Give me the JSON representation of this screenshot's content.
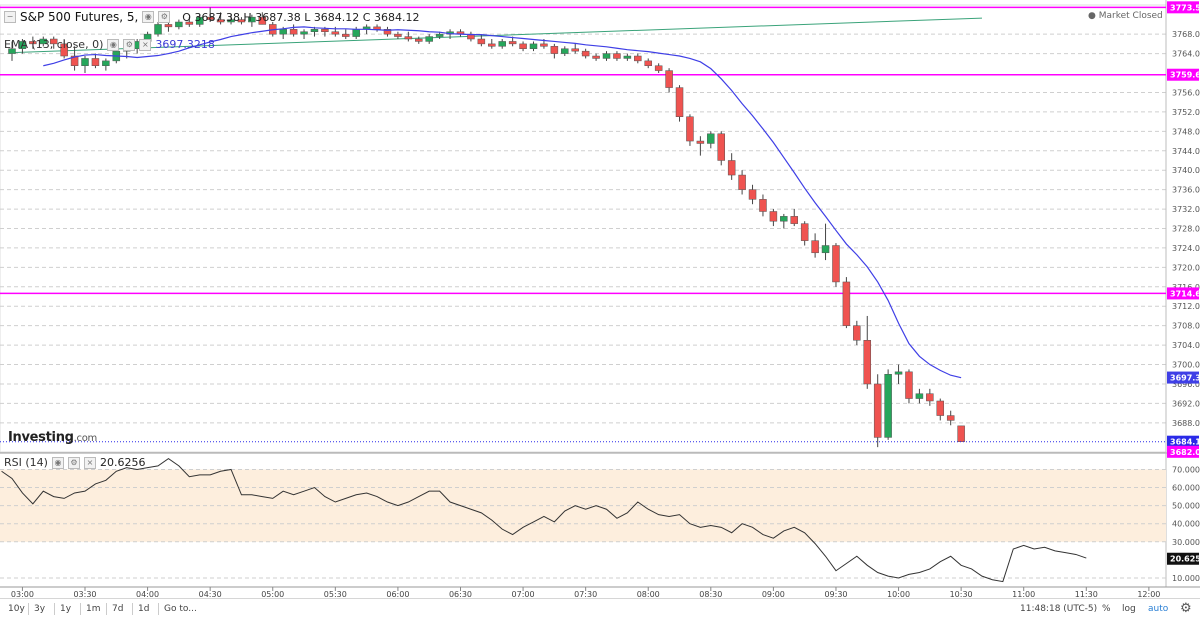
{
  "legend": {
    "title": "S&P 500 Futures, 5,",
    "ohlc": "O 3687.38  H 3687.38  L 3684.12  C 3684.12",
    "ema_label": "EMA (13, close, 0)",
    "ema_value": "3697.3218",
    "rsi_label": "RSI (14)",
    "rsi_value": "20.6256"
  },
  "brand": {
    "name": "Investing",
    "suffix": ".com"
  },
  "status": "Market Closed",
  "timeframes": [
    "10y",
    "3y",
    "1y",
    "1m",
    "7d",
    "1d",
    "Go to..."
  ],
  "clock": "11:48:18 (UTC-5)",
  "bottom_right": {
    "percent": "%",
    "log": "log",
    "auto": "auto"
  },
  "icons": [
    "gear-icon",
    "status-dot-icon"
  ],
  "colors": {
    "up": "#26a65b",
    "down": "#ef5350",
    "ema": "#3f3fe6",
    "trend": "#3aa37a",
    "level": "#ff00ff",
    "last": "#2a2ae8",
    "rsi": "#333333"
  },
  "chart_data": [
    {
      "type": "candlestick",
      "title": "S&P 500 Futures, 5,",
      "x_ticks": [
        "03:00",
        "03:30",
        "04:00",
        "04:30",
        "05:00",
        "05:30",
        "06:00",
        "06:30",
        "07:00",
        "07:30",
        "08:00",
        "08:30",
        "09:00",
        "09:30",
        "10:00",
        "10:30",
        "11:00",
        "11:30",
        "12:00"
      ],
      "y_ticks": [
        "3768.00",
        "3764.00",
        "3756.00",
        "3752.00",
        "3748.00",
        "3744.00",
        "3740.00",
        "3736.00",
        "3732.00",
        "3728.00",
        "3724.00",
        "3720.00",
        "3716.00",
        "3712.00",
        "3708.00",
        "3704.00",
        "3700.00",
        "3696.00",
        "3692.00",
        "3688.00"
      ],
      "ylim": [
        3682,
        3774
      ],
      "start_time": "02:55",
      "interval_minutes": 5,
      "candles": [
        [
          3764.0,
          3766.5,
          3762.5,
          3765.0
        ],
        [
          3765.0,
          3767.0,
          3764.0,
          3766.5
        ],
        [
          3766.5,
          3767.5,
          3765.0,
          3766.0
        ],
        [
          3766.0,
          3767.5,
          3765.5,
          3767.0
        ],
        [
          3767.0,
          3767.5,
          3765.0,
          3766.0
        ],
        [
          3766.0,
          3767.0,
          3763.0,
          3763.5
        ],
        [
          3763.5,
          3765.5,
          3760.5,
          3761.5
        ],
        [
          3761.5,
          3763.5,
          3760.0,
          3763.0
        ],
        [
          3763.0,
          3764.0,
          3761.0,
          3761.5
        ],
        [
          3761.5,
          3763.0,
          3760.5,
          3762.5
        ],
        [
          3762.5,
          3765.5,
          3762.0,
          3764.5
        ],
        [
          3764.5,
          3765.5,
          3763.0,
          3765.0
        ],
        [
          3765.0,
          3767.0,
          3764.0,
          3766.5
        ],
        [
          3766.5,
          3768.5,
          3766.0,
          3768.0
        ],
        [
          3768.0,
          3770.5,
          3767.5,
          3770.0
        ],
        [
          3770.0,
          3771.0,
          3768.5,
          3769.5
        ],
        [
          3769.5,
          3771.0,
          3769.0,
          3770.5
        ],
        [
          3770.5,
          3771.5,
          3769.5,
          3770.0
        ],
        [
          3770.0,
          3772.0,
          3769.5,
          3771.5
        ],
        [
          3771.5,
          3773.5,
          3770.5,
          3771.0
        ],
        [
          3771.0,
          3772.5,
          3770.0,
          3770.5
        ],
        [
          3770.5,
          3772.0,
          3770.0,
          3771.0
        ],
        [
          3771.0,
          3771.5,
          3770.0,
          3770.5
        ],
        [
          3770.5,
          3772.0,
          3769.5,
          3771.5
        ],
        [
          3771.5,
          3772.5,
          3770.0,
          3770.0
        ],
        [
          3770.0,
          3770.5,
          3767.5,
          3768.0
        ],
        [
          3768.0,
          3769.5,
          3767.0,
          3769.0
        ],
        [
          3769.0,
          3770.0,
          3767.5,
          3768.0
        ],
        [
          3768.0,
          3769.0,
          3767.0,
          3768.5
        ],
        [
          3768.5,
          3769.5,
          3767.5,
          3769.0
        ],
        [
          3769.0,
          3769.5,
          3767.5,
          3768.5
        ],
        [
          3768.5,
          3769.5,
          3767.5,
          3768.0
        ],
        [
          3768.0,
          3769.0,
          3767.0,
          3767.5
        ],
        [
          3767.5,
          3769.5,
          3767.0,
          3769.0
        ],
        [
          3769.0,
          3770.0,
          3768.0,
          3769.5
        ],
        [
          3769.5,
          3770.0,
          3768.5,
          3769.0
        ],
        [
          3769.0,
          3769.5,
          3767.5,
          3768.0
        ],
        [
          3768.0,
          3768.5,
          3767.0,
          3767.5
        ],
        [
          3767.5,
          3768.5,
          3766.5,
          3767.0
        ],
        [
          3767.0,
          3767.5,
          3766.0,
          3766.5
        ],
        [
          3766.5,
          3768.0,
          3766.0,
          3767.5
        ],
        [
          3767.5,
          3768.5,
          3767.0,
          3768.0
        ],
        [
          3768.0,
          3769.0,
          3767.0,
          3768.5
        ],
        [
          3768.5,
          3769.0,
          3767.5,
          3768.0
        ],
        [
          3768.0,
          3768.5,
          3766.5,
          3767.0
        ],
        [
          3767.0,
          3768.0,
          3765.5,
          3766.0
        ],
        [
          3766.0,
          3767.0,
          3765.0,
          3765.5
        ],
        [
          3765.5,
          3767.0,
          3765.0,
          3766.5
        ],
        [
          3766.5,
          3767.5,
          3765.5,
          3766.0
        ],
        [
          3766.0,
          3766.5,
          3764.5,
          3765.0
        ],
        [
          3765.0,
          3766.5,
          3764.5,
          3766.0
        ],
        [
          3766.0,
          3767.0,
          3765.0,
          3765.5
        ],
        [
          3765.5,
          3766.0,
          3763.0,
          3764.0
        ],
        [
          3764.0,
          3765.5,
          3763.5,
          3765.0
        ],
        [
          3765.0,
          3766.0,
          3764.0,
          3764.5
        ],
        [
          3764.5,
          3765.0,
          3763.0,
          3763.5
        ],
        [
          3763.5,
          3764.0,
          3762.5,
          3763.0
        ],
        [
          3763.0,
          3764.5,
          3762.5,
          3764.0
        ],
        [
          3764.0,
          3764.5,
          3762.5,
          3763.0
        ],
        [
          3763.0,
          3764.0,
          3762.5,
          3763.5
        ],
        [
          3763.5,
          3764.0,
          3762.0,
          3762.5
        ],
        [
          3762.5,
          3763.0,
          3761.0,
          3761.5
        ],
        [
          3761.5,
          3762.0,
          3760.0,
          3760.5
        ],
        [
          3760.5,
          3761.0,
          3756.0,
          3757.0
        ],
        [
          3757.0,
          3757.5,
          3750.0,
          3751.0
        ],
        [
          3751.0,
          3751.5,
          3745.0,
          3746.0
        ],
        [
          3746.0,
          3747.0,
          3743.0,
          3745.5
        ],
        [
          3745.5,
          3748.0,
          3744.5,
          3747.5
        ],
        [
          3747.5,
          3748.0,
          3741.0,
          3742.0
        ],
        [
          3742.0,
          3743.5,
          3738.0,
          3739.0
        ],
        [
          3739.0,
          3740.0,
          3735.0,
          3736.0
        ],
        [
          3736.0,
          3737.0,
          3733.0,
          3734.0
        ],
        [
          3734.0,
          3735.0,
          3730.5,
          3731.5
        ],
        [
          3731.5,
          3732.0,
          3728.5,
          3729.5
        ],
        [
          3729.5,
          3731.0,
          3728.0,
          3730.5
        ],
        [
          3730.5,
          3732.0,
          3728.5,
          3729.0
        ],
        [
          3729.0,
          3729.5,
          3724.5,
          3725.5
        ],
        [
          3725.5,
          3727.0,
          3722.0,
          3723.0
        ],
        [
          3723.0,
          3729.0,
          3721.5,
          3724.5
        ],
        [
          3724.5,
          3725.0,
          3716.0,
          3717.0
        ],
        [
          3717.0,
          3718.0,
          3707.5,
          3708.0
        ],
        [
          3708.0,
          3709.0,
          3704.0,
          3705.0
        ],
        [
          3705.0,
          3710.0,
          3695.0,
          3696.0
        ],
        [
          3696.0,
          3698.0,
          3683.0,
          3685.0
        ],
        [
          3685.0,
          3699.0,
          3684.5,
          3698.0
        ],
        [
          3698.0,
          3700.0,
          3696.0,
          3698.5
        ],
        [
          3698.5,
          3699.0,
          3692.0,
          3693.0
        ],
        [
          3693.0,
          3695.0,
          3692.0,
          3694.0
        ],
        [
          3694.0,
          3695.0,
          3691.5,
          3692.5
        ],
        [
          3692.5,
          3693.0,
          3688.5,
          3689.5
        ],
        [
          3689.5,
          3690.5,
          3687.5,
          3688.5
        ],
        [
          3687.38,
          3687.38,
          3684.12,
          3684.12
        ]
      ],
      "ema": {
        "name": "EMA (13, close, 0)",
        "last": "3697.32",
        "values": [
          3761.5,
          3762.0,
          3762.7,
          3763.3,
          3763.7,
          3763.8,
          3763.6,
          3763.5,
          3763.4,
          3763.2,
          3763.4,
          3763.6,
          3764.0,
          3764.5,
          3765.2,
          3765.8,
          3766.4,
          3766.9,
          3767.5,
          3767.9,
          3768.3,
          3768.6,
          3768.9,
          3769.1,
          3769.4,
          3769.5,
          3769.3,
          3769.2,
          3769.1,
          3769.1,
          3769.0,
          3769.0,
          3768.9,
          3768.8,
          3768.9,
          3768.8,
          3768.7,
          3768.5,
          3768.4,
          3768.1,
          3768.0,
          3767.9,
          3767.9,
          3767.7,
          3767.5,
          3767.3,
          3767.1,
          3766.9,
          3766.7,
          3766.5,
          3766.3,
          3766.1,
          3765.8,
          3765.6,
          3765.4,
          3765.1,
          3764.8,
          3764.6,
          3764.4,
          3764.1,
          3763.8,
          3763.5,
          3763.0,
          3762.3,
          3760.9,
          3758.8,
          3756.4,
          3753.7,
          3751.2,
          3748.5,
          3745.7,
          3742.6,
          3739.5,
          3736.3,
          3733.3,
          3730.5,
          3727.6,
          3724.8,
          3722.6,
          3720.1,
          3717.0,
          3713.2,
          3708.5,
          3704.3,
          3701.7,
          3700.0,
          3698.8,
          3697.8,
          3697.3
        ],
        "ema_start_index": 3
      },
      "trendline": {
        "from": [
          0,
          3764.2
        ],
        "to": [
          93,
          3771.3
        ]
      },
      "levels": [
        {
          "value": 3773.52,
          "label": "3773.52"
        },
        {
          "value": 3759.65,
          "label": "3759.65"
        },
        {
          "value": 3714.64,
          "label": "3714.64"
        }
      ],
      "price_labels": [
        {
          "value": 3697.32,
          "label": "3697.32",
          "color": "ema"
        },
        {
          "value": 3684.12,
          "label": "3684.12",
          "color": "last"
        },
        {
          "value": 3682.04,
          "label": "3682.04",
          "color": "level"
        }
      ],
      "last_price": 3684.12
    },
    {
      "type": "line",
      "title": "RSI (14)",
      "ylim": [
        5,
        78
      ],
      "y_ticks": [
        "70.0000",
        "60.0000",
        "50.0000",
        "40.0000",
        "30.0000",
        "10.0000"
      ],
      "band": [
        30,
        70
      ],
      "last": "20.6256",
      "values": [
        68,
        66,
        70,
        69,
        65,
        57,
        51,
        58,
        55,
        54,
        57,
        58,
        62,
        64,
        69,
        71,
        70,
        71,
        72,
        76,
        72,
        66,
        67,
        67,
        69,
        70,
        56,
        56,
        55,
        54,
        58,
        56,
        58,
        60,
        55,
        52,
        54,
        56,
        57,
        55,
        52,
        50,
        52,
        55,
        58,
        58,
        52,
        50,
        48,
        46,
        42,
        37,
        34,
        38,
        41,
        44,
        41,
        47,
        50,
        48,
        50,
        48,
        43,
        46,
        52,
        48,
        45,
        44,
        45,
        40,
        38,
        39,
        38,
        35,
        40,
        38,
        34,
        32,
        36,
        38,
        35,
        29,
        22,
        14,
        18,
        22,
        17,
        13,
        11,
        10,
        12,
        13,
        15,
        19,
        22,
        17,
        15,
        11,
        9,
        8,
        26,
        28,
        26,
        27,
        25,
        24,
        23,
        21
      ],
      "index_offset": -4,
      "values_per_candle": 1
    }
  ]
}
